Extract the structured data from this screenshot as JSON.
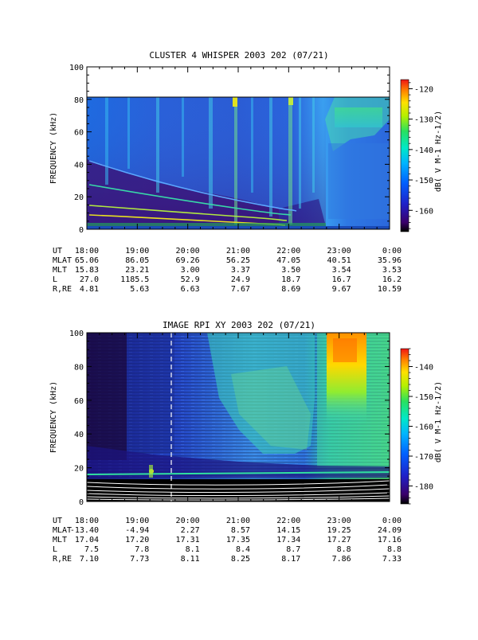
{
  "chart_data": [
    {
      "type": "heatmap",
      "title": "CLUSTER 4 WHISPER 2003 202 (07/21)",
      "ylabel": "FREQUENCY (kHz)",
      "ylim": [
        0,
        100
      ],
      "yticks": [
        "0",
        "20",
        "40",
        "60",
        "80",
        "100"
      ],
      "ytick_values": [
        0,
        20,
        40,
        60,
        80,
        100
      ],
      "xticks": [
        "18:00",
        "19:00",
        "20:00",
        "21:00",
        "22:00",
        "23:00",
        "0:00"
      ],
      "xlim_hours": [
        18,
        24
      ],
      "data_ymax": 80,
      "colorbar": {
        "label": "dB( V M-1 Hz-1/2)",
        "range": [
          -167,
          -117
        ],
        "ticks": [
          "-120",
          "-130",
          "-140",
          "-150",
          "-160"
        ],
        "tick_values": [
          -120,
          -130,
          -140,
          -150,
          -160
        ]
      },
      "orbit": {
        "labels": [
          "UT",
          "MLAT",
          "MLT",
          "L",
          "R,RE"
        ],
        "rows": [
          [
            "18:00",
            "19:00",
            "20:00",
            "21:00",
            "22:00",
            "23:00",
            "0:00"
          ],
          [
            "65.06",
            "86.05",
            "69.26",
            "56.25",
            "47.05",
            "40.51",
            "35.96"
          ],
          [
            "15.83",
            "23.21",
            "3.00",
            "3.37",
            "3.50",
            "3.54",
            "3.53"
          ],
          [
            "27.0",
            "1185.5",
            "52.9",
            "24.9",
            "18.7",
            "16.7",
            "16.2"
          ],
          [
            "4.81",
            "5.63",
            "6.63",
            "7.67",
            "8.69",
            "9.67",
            "10.59"
          ]
        ]
      }
    },
    {
      "type": "heatmap",
      "title": "IMAGE RPI XY 2003 202 (07/21)",
      "ylabel": "FREQUENCY (kHz)",
      "ylim": [
        0,
        100
      ],
      "yticks": [
        "0",
        "20",
        "40",
        "60",
        "80",
        "100"
      ],
      "ytick_values": [
        0,
        20,
        40,
        60,
        80,
        100
      ],
      "xticks": [
        "18:00",
        "19:00",
        "20:00",
        "21:00",
        "22:00",
        "23:00",
        "0:00"
      ],
      "xlim_hours": [
        18,
        24
      ],
      "data_ymax": 100,
      "colorbar": {
        "label": "dB( V M-1 Hz-1/2)",
        "range": [
          -186,
          -134
        ],
        "ticks": [
          "-140",
          "-150",
          "-160",
          "-170",
          "-180"
        ],
        "tick_values": [
          -140,
          -150,
          -160,
          -170,
          -180
        ]
      },
      "orbit": {
        "labels": [
          "UT",
          "MLAT",
          "MLT",
          "L",
          "R,RE"
        ],
        "rows": [
          [
            "18:00",
            "19:00",
            "20:00",
            "21:00",
            "22:00",
            "23:00",
            "0:00"
          ],
          [
            "-13.40",
            "-4.94",
            "2.27",
            "8.57",
            "14.15",
            "19.25",
            "24.09"
          ],
          [
            "17.04",
            "17.20",
            "17.31",
            "17.35",
            "17.34",
            "17.27",
            "17.16"
          ],
          [
            "7.5",
            "7.8",
            "8.1",
            "8.4",
            "8.7",
            "8.8",
            "8.8"
          ],
          [
            "7.10",
            "7.73",
            "8.11",
            "8.25",
            "8.17",
            "7.86",
            "7.33"
          ]
        ]
      }
    }
  ]
}
